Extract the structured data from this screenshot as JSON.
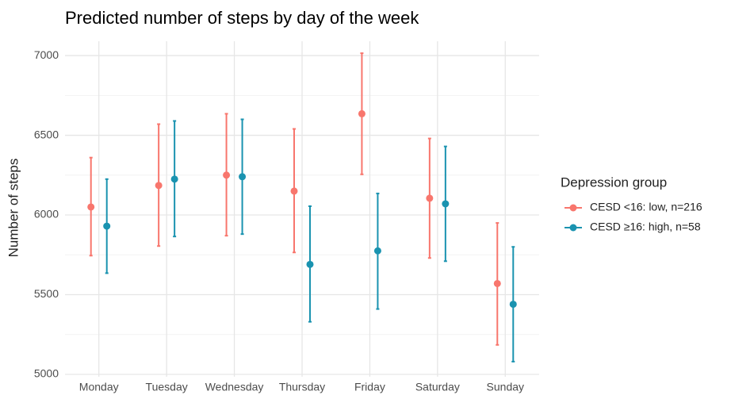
{
  "chart_data": {
    "type": "errorbar",
    "title": "Predicted number of steps by day of the week",
    "y_label": "Number of steps",
    "legend_title": "Depression group",
    "categories": [
      "Monday",
      "Tuesday",
      "Wednesday",
      "Thursday",
      "Friday",
      "Saturday",
      "Sunday"
    ],
    "series": [
      {
        "name": "CESD <16: low, n=216",
        "color": "#f8766d",
        "values": [
          6050,
          6185,
          6250,
          6150,
          6635,
          6105,
          5570
        ],
        "lower": [
          5745,
          5805,
          5870,
          5765,
          6255,
          5730,
          5185
        ],
        "upper": [
          6360,
          6570,
          6635,
          6540,
          7015,
          6480,
          5950
        ]
      },
      {
        "name": "CESD ≥16: high, n=58",
        "color": "#1a93b0",
        "values": [
          5930,
          6225,
          6240,
          5690,
          5775,
          6070,
          5440
        ],
        "lower": [
          5635,
          5865,
          5880,
          5330,
          5410,
          5710,
          5080
        ],
        "upper": [
          6225,
          6590,
          6600,
          6055,
          6135,
          6430,
          5800
        ]
      }
    ],
    "ylim": [
      4985,
      7090
    ],
    "yticks": [
      5000,
      5500,
      6000,
      6500,
      7000
    ],
    "minor_yticks": [
      5250,
      5750,
      6250,
      6750
    ],
    "grid": true,
    "legend_position": "right"
  }
}
